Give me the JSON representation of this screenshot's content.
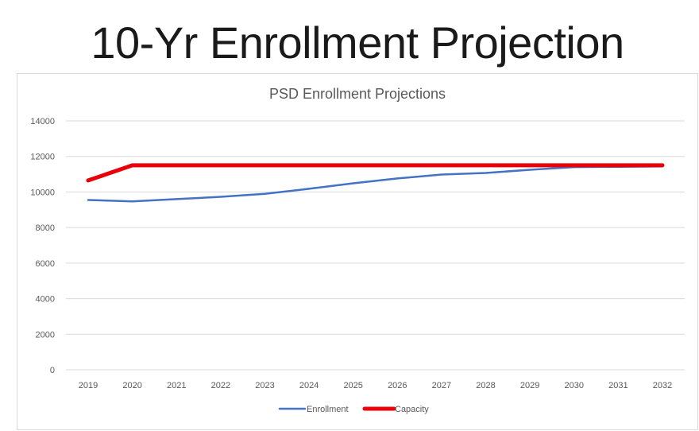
{
  "slide": {
    "title": "10-Yr Enrollment Projection"
  },
  "chart_data": {
    "type": "line",
    "title": "PSD Enrollment Projections",
    "xlabel": "",
    "ylabel": "",
    "x": [
      "2019",
      "2020",
      "2021",
      "2022",
      "2023",
      "2024",
      "2025",
      "2026",
      "2027",
      "2028",
      "2029",
      "2030",
      "2031",
      "2032"
    ],
    "ylim": [
      0,
      14000
    ],
    "yticks": [
      0,
      2000,
      4000,
      6000,
      8000,
      10000,
      12000,
      14000
    ],
    "ytick_labels": [
      "0",
      "2000",
      "4000",
      "6000",
      "8000",
      "10000",
      "12000",
      "14000"
    ],
    "grid": true,
    "legend_position": "bottom",
    "series": [
      {
        "name": "Enrollment",
        "color": "#4472c4",
        "values": [
          9550,
          9470,
          9600,
          9730,
          9900,
          10180,
          10490,
          10760,
          10980,
          11070,
          11250,
          11400,
          11420,
          11440
        ]
      },
      {
        "name": "Capacity",
        "color": "#e8000b",
        "values": [
          10650,
          11500,
          11500,
          11500,
          11500,
          11500,
          11500,
          11500,
          11500,
          11500,
          11500,
          11500,
          11500,
          11500
        ]
      }
    ]
  }
}
